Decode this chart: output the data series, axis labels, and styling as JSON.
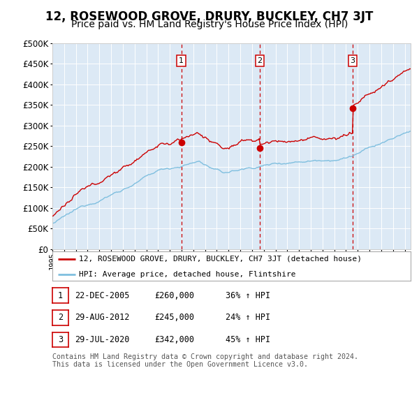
{
  "title": "12, ROSEWOOD GROVE, DRURY, BUCKLEY, CH7 3JT",
  "subtitle": "Price paid vs. HM Land Registry's House Price Index (HPI)",
  "title_fontsize": 12,
  "subtitle_fontsize": 10,
  "background_color": "#ffffff",
  "plot_bg_color": "#dce9f5",
  "grid_color": "#ffffff",
  "ylim": [
    0,
    500000
  ],
  "yticks": [
    0,
    50000,
    100000,
    150000,
    200000,
    250000,
    300000,
    350000,
    400000,
    450000,
    500000
  ],
  "hpi_line_color": "#7fbfdf",
  "sale_line_color": "#cc0000",
  "sale_dot_color": "#cc0000",
  "dashed_line_color": "#cc0000",
  "legend_label_sale": "12, ROSEWOOD GROVE, DRURY, BUCKLEY, CH7 3JT (detached house)",
  "legend_label_hpi": "HPI: Average price, detached house, Flintshire",
  "sale_dates": [
    2005.97,
    2012.66,
    2020.57
  ],
  "sale_prices": [
    260000,
    245000,
    342000
  ],
  "sale_labels": [
    "1",
    "2",
    "3"
  ],
  "table_entries": [
    {
      "label": "1",
      "date": "22-DEC-2005",
      "price": "£260,000",
      "change": "36% ↑ HPI"
    },
    {
      "label": "2",
      "date": "29-AUG-2012",
      "price": "£245,000",
      "change": "24% ↑ HPI"
    },
    {
      "label": "3",
      "date": "29-JUL-2020",
      "price": "£342,000",
      "change": "45% ↑ HPI"
    }
  ],
  "footer": "Contains HM Land Registry data © Crown copyright and database right 2024.\nThis data is licensed under the Open Government Licence v3.0.",
  "xstart": 1995.0,
  "xend": 2025.5
}
